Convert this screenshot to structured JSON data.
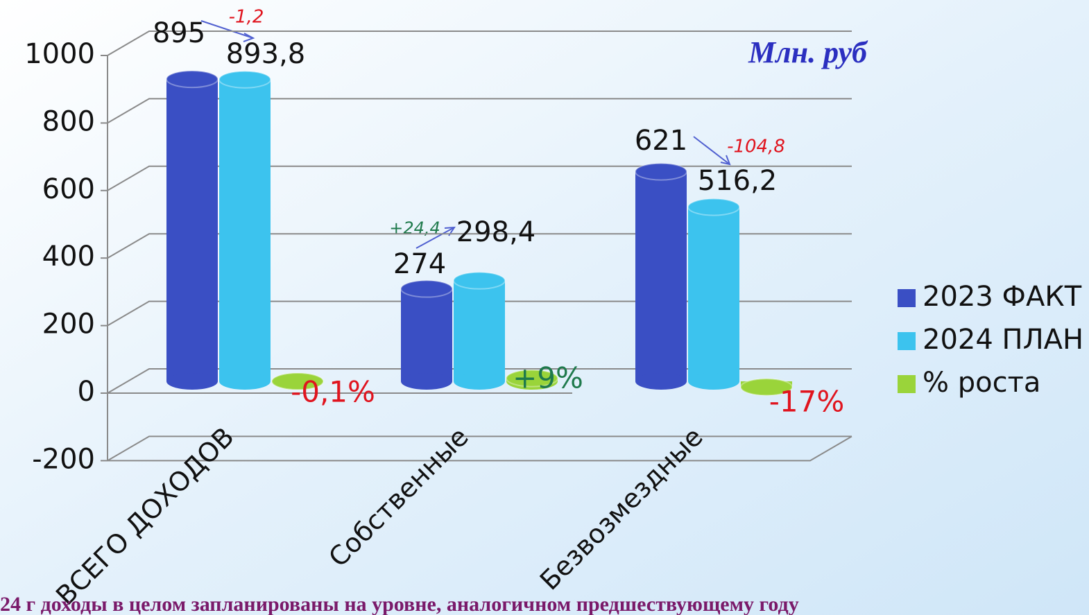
{
  "chart_data": {
    "type": "bar3d",
    "unit_label": "Млн. руб",
    "categories": [
      "ВСЕГО ДОХОДОВ",
      "Собственные",
      "Безвозмездные"
    ],
    "series": [
      {
        "name": "2023 ФАКТ",
        "color": "#3a4fc4",
        "values": [
          895,
          274,
          621
        ],
        "value_labels": [
          "895",
          "274",
          "621"
        ]
      },
      {
        "name": "2024 ПЛАН",
        "color": "#3cc3ee",
        "values": [
          893.8,
          298.4,
          516.2
        ],
        "value_labels": [
          "893,8",
          "298,4",
          "516,2"
        ]
      },
      {
        "name": "% роста",
        "color": "#9ad43a",
        "values": [
          -0.1,
          9,
          -17
        ],
        "value_labels": [
          "-0,1%",
          "+9%",
          "-17%"
        ]
      }
    ],
    "annotations": [
      "-1,2",
      "+24,4",
      "-104,8"
    ],
    "footnote": "24 г доходы в целом запланированы на уровне, аналогичном предшествующему году",
    "ylim": [
      -200,
      1000
    ],
    "yticks": [
      -200,
      0,
      200,
      400,
      600,
      800,
      1000
    ],
    "grid": true,
    "legend": "right"
  }
}
